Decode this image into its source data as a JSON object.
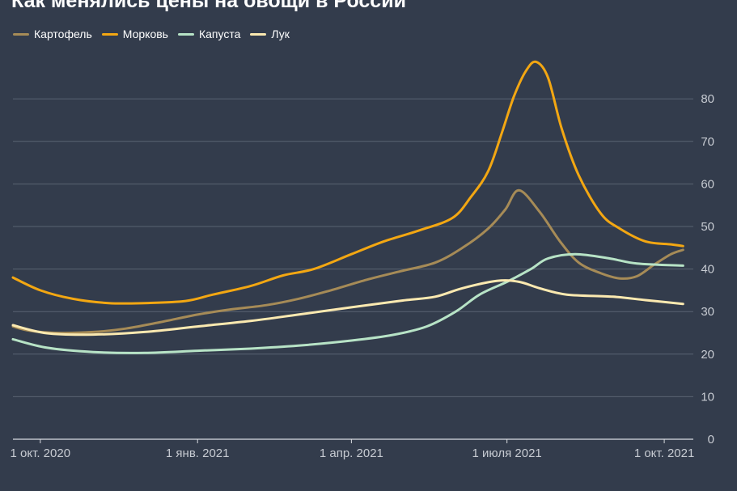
{
  "chart_data": {
    "type": "line",
    "title": "Как менялись цены на овощи в России",
    "xlabel": "",
    "ylabel": "",
    "ylim": [
      0,
      90
    ],
    "yticks": [
      0,
      10,
      20,
      30,
      40,
      50,
      60,
      70,
      80
    ],
    "y_axis_side": "right",
    "grid": true,
    "legend_position": "top-left",
    "xlim": [
      "2020-09-15",
      "2021-10-18"
    ],
    "xticks": [
      {
        "date": "2020-10-01",
        "label": "1 окт. 2020"
      },
      {
        "date": "2021-01-01",
        "label": "1 янв. 2021"
      },
      {
        "date": "2021-04-01",
        "label": "1 апр. 2021"
      },
      {
        "date": "2021-07-01",
        "label": "1 июля 2021"
      },
      {
        "date": "2021-10-01",
        "label": "1 окт. 2021"
      }
    ],
    "series": [
      {
        "name": "Картофель",
        "color": "#a68b57",
        "points": [
          [
            "2020-09-15",
            26.5
          ],
          [
            "2020-09-25",
            25.5
          ],
          [
            "2020-10-10",
            25.0
          ],
          [
            "2020-11-01",
            25.2
          ],
          [
            "2020-11-20",
            26.0
          ],
          [
            "2020-12-10",
            27.5
          ],
          [
            "2021-01-01",
            29.3
          ],
          [
            "2021-01-20",
            30.5
          ],
          [
            "2021-02-10",
            31.5
          ],
          [
            "2021-03-01",
            33.0
          ],
          [
            "2021-03-20",
            35.0
          ],
          [
            "2021-04-10",
            37.5
          ],
          [
            "2021-04-30",
            39.5
          ],
          [
            "2021-05-20",
            41.5
          ],
          [
            "2021-06-05",
            45.0
          ],
          [
            "2021-06-20",
            49.5
          ],
          [
            "2021-06-30",
            54.0
          ],
          [
            "2021-07-08",
            58.5
          ],
          [
            "2021-07-20",
            53.5
          ],
          [
            "2021-08-01",
            46.5
          ],
          [
            "2021-08-12",
            41.5
          ],
          [
            "2021-08-25",
            39.0
          ],
          [
            "2021-09-05",
            37.8
          ],
          [
            "2021-09-15",
            38.3
          ],
          [
            "2021-09-25",
            41.0
          ],
          [
            "2021-10-05",
            43.5
          ],
          [
            "2021-10-12",
            44.5
          ]
        ]
      },
      {
        "name": "Морковь",
        "color": "#f3a712",
        "points": [
          [
            "2020-09-15",
            38.0
          ],
          [
            "2020-10-01",
            35.0
          ],
          [
            "2020-10-20",
            33.0
          ],
          [
            "2020-11-10",
            32.0
          ],
          [
            "2020-12-01",
            32.0
          ],
          [
            "2020-12-25",
            32.5
          ],
          [
            "2021-01-10",
            34.0
          ],
          [
            "2021-02-01",
            36.0
          ],
          [
            "2021-02-20",
            38.5
          ],
          [
            "2021-03-10",
            40.0
          ],
          [
            "2021-04-01",
            43.5
          ],
          [
            "2021-04-20",
            46.5
          ],
          [
            "2021-05-10",
            49.0
          ],
          [
            "2021-05-30",
            52.0
          ],
          [
            "2021-06-10",
            57.0
          ],
          [
            "2021-06-20",
            63.0
          ],
          [
            "2021-06-28",
            72.0
          ],
          [
            "2021-07-05",
            80.5
          ],
          [
            "2021-07-12",
            86.5
          ],
          [
            "2021-07-18",
            88.7
          ],
          [
            "2021-07-25",
            85.0
          ],
          [
            "2021-08-02",
            73.0
          ],
          [
            "2021-08-12",
            62.0
          ],
          [
            "2021-08-25",
            53.0
          ],
          [
            "2021-09-05",
            49.5
          ],
          [
            "2021-09-20",
            46.5
          ],
          [
            "2021-10-05",
            45.8
          ],
          [
            "2021-10-12",
            45.4
          ]
        ]
      },
      {
        "name": "Капуста",
        "color": "#b7e3c6",
        "points": [
          [
            "2020-09-15",
            23.5
          ],
          [
            "2020-10-05",
            21.5
          ],
          [
            "2020-11-01",
            20.5
          ],
          [
            "2020-12-01",
            20.3
          ],
          [
            "2021-01-01",
            20.8
          ],
          [
            "2021-02-01",
            21.3
          ],
          [
            "2021-03-01",
            22.0
          ],
          [
            "2021-04-01",
            23.2
          ],
          [
            "2021-04-25",
            24.5
          ],
          [
            "2021-05-15",
            26.5
          ],
          [
            "2021-06-01",
            30.0
          ],
          [
            "2021-06-15",
            34.0
          ],
          [
            "2021-07-01",
            37.0
          ],
          [
            "2021-07-15",
            40.0
          ],
          [
            "2021-07-25",
            42.5
          ],
          [
            "2021-08-10",
            43.5
          ],
          [
            "2021-08-30",
            42.5
          ],
          [
            "2021-09-15",
            41.3
          ],
          [
            "2021-10-12",
            40.8
          ]
        ]
      },
      {
        "name": "Лук",
        "color": "#fbe9b0",
        "points": [
          [
            "2020-09-15",
            26.8
          ],
          [
            "2020-10-05",
            24.9
          ],
          [
            "2020-11-01",
            24.6
          ],
          [
            "2020-12-01",
            25.2
          ],
          [
            "2021-01-01",
            26.5
          ],
          [
            "2021-02-01",
            27.8
          ],
          [
            "2021-03-01",
            29.3
          ],
          [
            "2021-04-01",
            31.0
          ],
          [
            "2021-05-01",
            32.6
          ],
          [
            "2021-05-20",
            33.5
          ],
          [
            "2021-06-05",
            35.5
          ],
          [
            "2021-06-25",
            37.2
          ],
          [
            "2021-07-08",
            37.0
          ],
          [
            "2021-07-20",
            35.5
          ],
          [
            "2021-08-05",
            34.0
          ],
          [
            "2021-09-01",
            33.5
          ],
          [
            "2021-09-20",
            32.7
          ],
          [
            "2021-10-12",
            31.8
          ]
        ]
      }
    ]
  }
}
